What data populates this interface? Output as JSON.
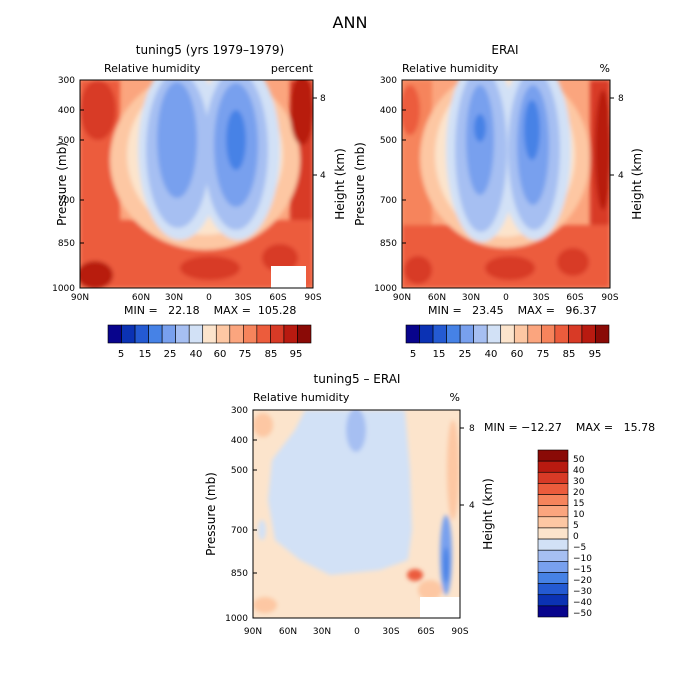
{
  "title": "ANN",
  "colors": {
    "abs_scale": [
      "#08048c",
      "#0b32b4",
      "#245ad2",
      "#4682e6",
      "#78a0ee",
      "#a6bff2",
      "#d2e1f6",
      "#fce4cc",
      "#fdc7a3",
      "#fba57e",
      "#f6845c",
      "#ec5c3c",
      "#d83a26",
      "#b81a10",
      "#8a0a06"
    ],
    "diff_scale": [
      "#08048c",
      "#0b32b4",
      "#245ad2",
      "#4682e6",
      "#78a0ee",
      "#a6bff2",
      "#d2e1f6",
      "#fce4cc",
      "#fdc7a3",
      "#fba57e",
      "#f6845c",
      "#ec5c3c",
      "#d83a26",
      "#b81a10",
      "#8a0a06"
    ],
    "frame": "#000000"
  },
  "chart_data": [
    {
      "type": "heatmap",
      "id": "model",
      "title": "tuning5 (yrs 1979–1979)",
      "subtitle_left": "Relative humidity",
      "subtitle_right": "percent",
      "xlabel": "",
      "ylabel": "Pressure (mb)",
      "y2label": "Height (km)",
      "x_ticks": [
        "90N",
        "60N",
        "30N",
        "0",
        "30S",
        "60S",
        "90S"
      ],
      "y_ticks": [
        "300",
        "400",
        "500",
        "700",
        "850",
        "1000"
      ],
      "y2_ticks": [
        "8",
        "4"
      ],
      "ylim": [
        1000,
        300
      ],
      "stats": "MIN =   22.18    MAX =  105.28",
      "min": 22.18,
      "max": 105.28,
      "colorbar_labels": [
        "5",
        "15",
        "25",
        "40",
        "60",
        "75",
        "85",
        "95"
      ]
    },
    {
      "type": "heatmap",
      "id": "obs",
      "title": "ERAI",
      "subtitle_left": "Relative humidity",
      "subtitle_right": "%",
      "ylabel": "Pressure (mb)",
      "y2label": "Height (km)",
      "x_ticks": [
        "90N",
        "60N",
        "30N",
        "0",
        "30S",
        "60S",
        "90S"
      ],
      "y_ticks": [
        "300",
        "400",
        "500",
        "700",
        "850",
        "1000"
      ],
      "y2_ticks": [
        "8",
        "4"
      ],
      "ylim": [
        1000,
        300
      ],
      "stats": "MIN =   23.45    MAX =   96.37",
      "min": 23.45,
      "max": 96.37,
      "colorbar_labels": [
        "5",
        "15",
        "25",
        "40",
        "60",
        "75",
        "85",
        "95"
      ]
    },
    {
      "type": "heatmap",
      "id": "diff",
      "title": "tuning5 – ERAI",
      "subtitle_left": "Relative humidity",
      "subtitle_right": "%",
      "ylabel": "Pressure (mb)",
      "y2label": "Height (km)",
      "x_ticks": [
        "90N",
        "60N",
        "30N",
        "0",
        "30S",
        "60S",
        "90S"
      ],
      "y_ticks": [
        "300",
        "400",
        "500",
        "700",
        "850",
        "1000"
      ],
      "y2_ticks": [
        "8",
        "4"
      ],
      "ylim": [
        1000,
        300
      ],
      "stats": "MIN = −12.27    MAX =   15.78",
      "min": -12.27,
      "max": 15.78,
      "colorbar_labels": [
        "50",
        "40",
        "30",
        "20",
        "15",
        "10",
        "5",
        "0",
        "−5",
        "−10",
        "−15",
        "−20",
        "−30",
        "−40",
        "−50"
      ]
    }
  ]
}
